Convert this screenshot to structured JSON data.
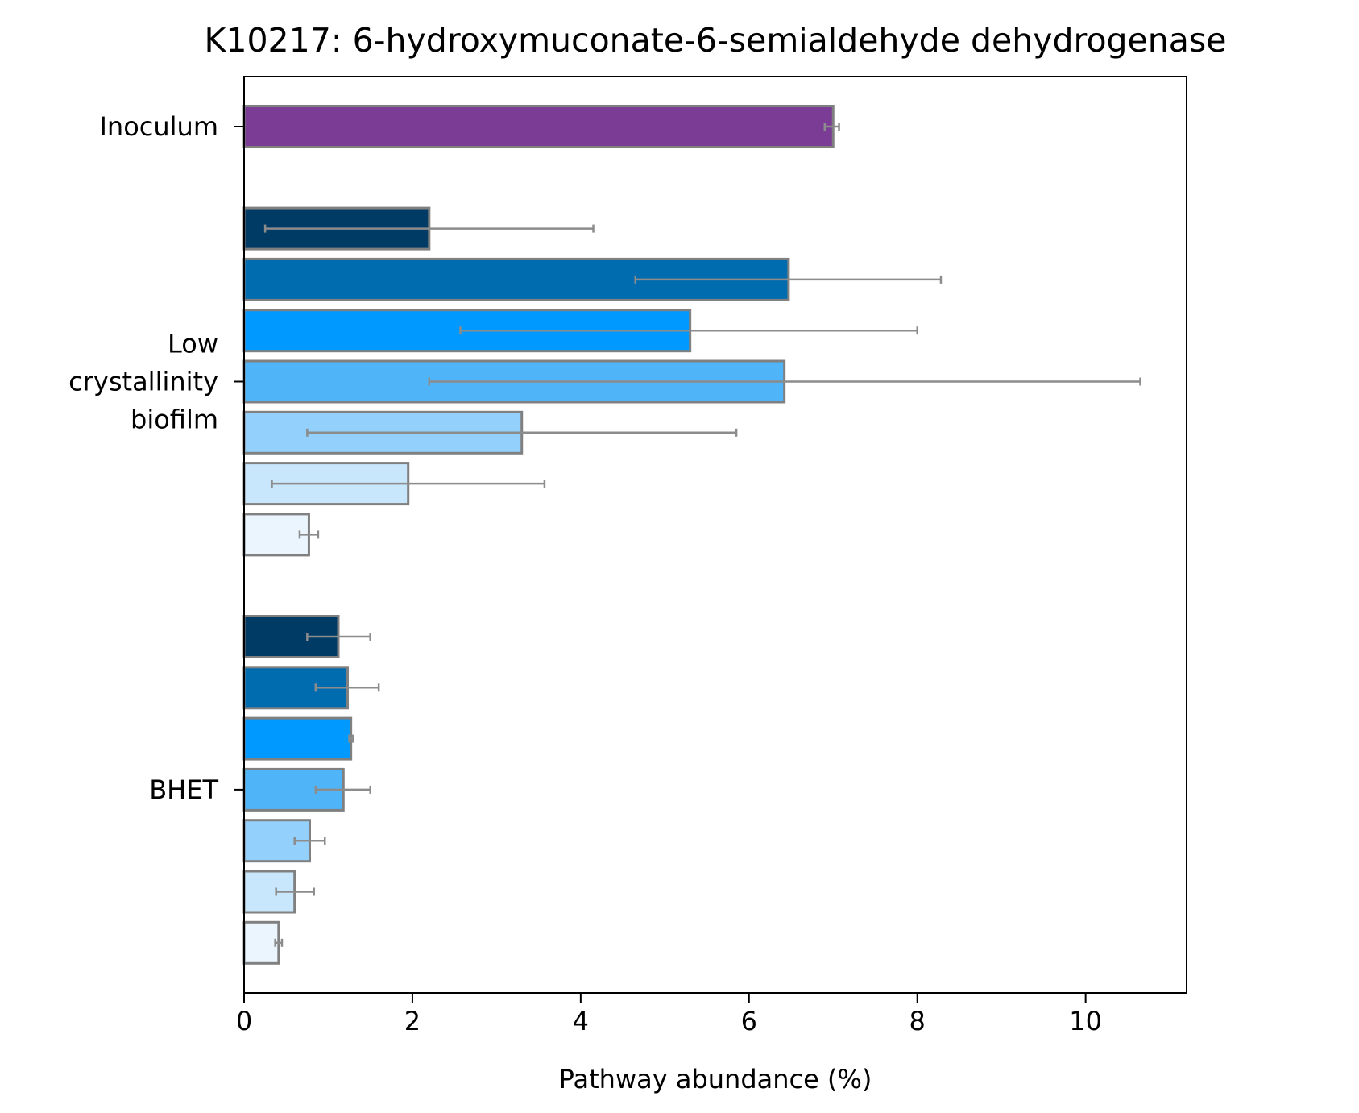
{
  "chart_data": {
    "type": "bar",
    "orientation": "horizontal",
    "title": "K10217: 6-hydroxymuconate-6-semialdehyde dehydrogenase",
    "xlabel": "Pathway abundance (%)",
    "ylabel": "",
    "xlim": [
      0,
      11.2
    ],
    "xticks": [
      0,
      2,
      4,
      6,
      8,
      10
    ],
    "grid": false,
    "legend": "none",
    "groups": [
      {
        "label": "Inoculum",
        "label_lines": [
          "Inoculum"
        ],
        "bars": [
          {
            "value": 7.0,
            "err_low": 6.9,
            "err_high": 7.07,
            "color": "#7b3c96"
          }
        ]
      },
      {
        "label": "Low crystallinity biofilm",
        "label_lines": [
          "Low",
          "crystallinity",
          "biofilm"
        ],
        "bars": [
          {
            "value": 2.2,
            "err_low": 0.25,
            "err_high": 4.15,
            "color": "#003b66"
          },
          {
            "value": 6.47,
            "err_low": 4.65,
            "err_high": 8.28,
            "color": "#006cb0"
          },
          {
            "value": 5.3,
            "err_low": 2.57,
            "err_high": 8.0,
            "color": "#0099ff"
          },
          {
            "value": 6.42,
            "err_low": 2.2,
            "err_high": 10.65,
            "color": "#4fb5f8"
          },
          {
            "value": 3.3,
            "err_low": 0.75,
            "err_high": 5.85,
            "color": "#93d0fc"
          },
          {
            "value": 1.95,
            "err_low": 0.33,
            "err_high": 3.57,
            "color": "#c8e6fc"
          },
          {
            "value": 0.77,
            "err_low": 0.66,
            "err_high": 0.88,
            "color": "#eaf5fd"
          }
        ]
      },
      {
        "label": "BHET",
        "label_lines": [
          "BHET"
        ],
        "bars": [
          {
            "value": 1.12,
            "err_low": 0.75,
            "err_high": 1.5,
            "color": "#003b66"
          },
          {
            "value": 1.23,
            "err_low": 0.85,
            "err_high": 1.6,
            "color": "#006cb0"
          },
          {
            "value": 1.27,
            "err_low": 1.25,
            "err_high": 1.29,
            "color": "#0099ff"
          },
          {
            "value": 1.18,
            "err_low": 0.85,
            "err_high": 1.5,
            "color": "#4fb5f8"
          },
          {
            "value": 0.78,
            "err_low": 0.6,
            "err_high": 0.96,
            "color": "#93d0fc"
          },
          {
            "value": 0.6,
            "err_low": 0.38,
            "err_high": 0.83,
            "color": "#c8e6fc"
          },
          {
            "value": 0.41,
            "err_low": 0.37,
            "err_high": 0.45,
            "color": "#eaf5fd"
          }
        ]
      }
    ],
    "bar_edge_color": "#808080",
    "error_bar_color": "#8c8c8c"
  }
}
